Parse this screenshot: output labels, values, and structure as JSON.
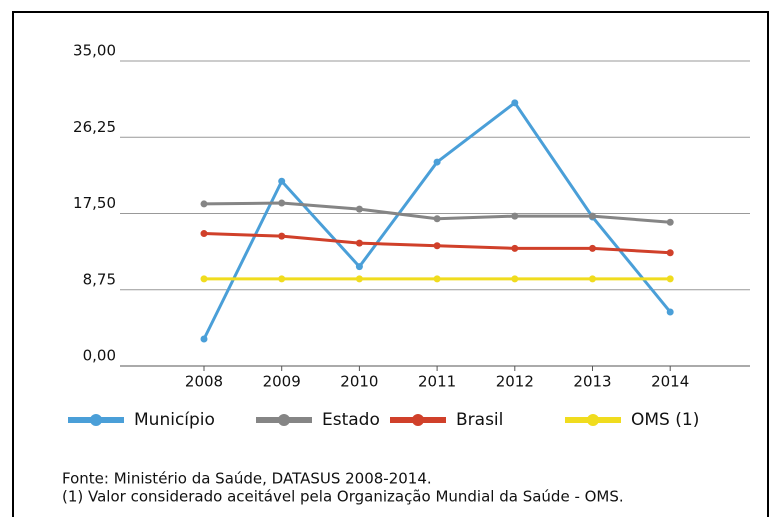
{
  "chart_data": {
    "type": "line",
    "categories": [
      "2008",
      "2009",
      "2010",
      "2011",
      "2012",
      "2013",
      "2014"
    ],
    "series": [
      {
        "name": "Município",
        "color": "#4a9fd8",
        "values": [
          3.1,
          21.2,
          11.4,
          23.4,
          30.2,
          17.1,
          6.2
        ]
      },
      {
        "name": "Estado",
        "color": "#858585",
        "values": [
          18.6,
          18.7,
          18.0,
          16.9,
          17.2,
          17.2,
          16.5
        ]
      },
      {
        "name": "Brasil",
        "color": "#d0402a",
        "values": [
          15.2,
          14.9,
          14.1,
          13.8,
          13.5,
          13.5,
          13.0
        ]
      },
      {
        "name": "OMS (1)",
        "color": "#f0dc1e",
        "values": [
          10,
          10,
          10,
          10,
          10,
          10,
          10
        ]
      }
    ],
    "ylim": [
      0,
      35
    ],
    "yticks": [
      {
        "value": 0,
        "label": "0,00"
      },
      {
        "value": 8.75,
        "label": "8,75"
      },
      {
        "value": 17.5,
        "label": "17,50"
      },
      {
        "value": 26.25,
        "label": "26,25"
      },
      {
        "value": 35,
        "label": "35,00"
      }
    ],
    "grid": true,
    "notes": [
      "Fonte: Ministério da Saúde, DATASUS 2008-2014.",
      "(1) Valor considerado aceitável pela Organização Mundial da Saúde - OMS."
    ]
  }
}
